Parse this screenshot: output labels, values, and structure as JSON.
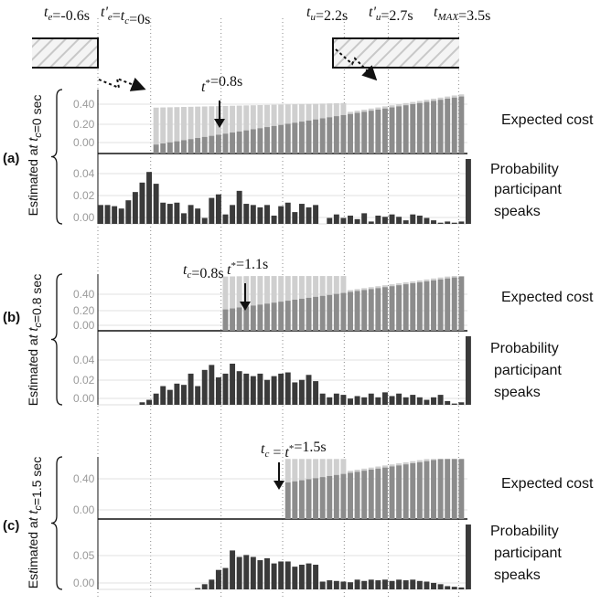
{
  "chart_data": {
    "type": "bar",
    "time_labels": [
      {
        "id": "te",
        "text": "t_e=-0.6s",
        "t": -0.6
      },
      {
        "id": "tc",
        "text": "t'_e=t_c=0s",
        "t": 0
      },
      {
        "id": "tu",
        "text": "t_u=2.2s",
        "t": 2.2
      },
      {
        "id": "tup",
        "text": "t'_u=2.7s",
        "t": 2.7
      },
      {
        "id": "tmax",
        "text": "t_MAX=3.5s",
        "t": 3.5
      }
    ],
    "panels": [
      {
        "label": "(a)",
        "ylabel": "Estimated at t_c=0 sec",
        "tc": 0,
        "tstar_label": "t*=0.8s",
        "tc_label": "",
        "cost_title": "Expected cost",
        "prob_title": "Probability participant speaks",
        "cost_ticks": [
          "0.40",
          "0.20",
          "0.00"
        ],
        "prob_ticks": [
          "0.04",
          "0.02",
          "0.00"
        ],
        "cost_ymax": 0.6,
        "prob_ymax": 0.055,
        "cost_start": 0.0,
        "prob_start": -0.6,
        "prob": [
          0.016,
          0.016,
          0.015,
          0.013,
          0.02,
          0.027,
          0.035,
          0.044,
          0.034,
          0.018,
          0.017,
          0.018,
          0.009,
          0.016,
          0.013,
          0.005,
          0.022,
          0.025,
          0.008,
          0.016,
          0.028,
          0.017,
          0.016,
          0.014,
          0.016,
          0.007,
          0.015,
          0.018,
          0.01,
          0.017,
          0.014,
          0.016,
          0.0,
          0.005,
          0.008,
          0.005,
          0.007,
          0.004,
          0.009,
          0.002,
          0.007,
          0.006,
          0.008,
          0.006,
          0.003,
          0.008,
          0.007,
          0.005,
          0.003,
          0.001,
          0.002,
          0.001,
          0.002,
          0.055
        ]
      },
      {
        "label": "(b)",
        "ylabel": "Estimated at t_c=0.8 sec",
        "tc": 0.8,
        "tstar_label": "t*=1.1s",
        "tc_label": "t_c=0.8s",
        "cost_title": "Expected cost",
        "prob_title": "Probability participant speaks",
        "cost_ticks": [
          "0.40",
          "0.20",
          "0.00"
        ],
        "prob_ticks": [
          "0.04",
          "0.02",
          "0.00"
        ],
        "cost_ymax": 0.6,
        "prob_ymax": 0.055,
        "cost_start": 0.8,
        "prob_start": -0.6,
        "prob": [
          0.0,
          0.0,
          0.0,
          0.0,
          0.0,
          0.0,
          0.002,
          0.004,
          0.009,
          0.015,
          0.012,
          0.017,
          0.016,
          0.025,
          0.015,
          0.028,
          0.032,
          0.022,
          0.025,
          0.033,
          0.027,
          0.025,
          0.023,
          0.025,
          0.02,
          0.023,
          0.025,
          0.026,
          0.018,
          0.02,
          0.024,
          0.019,
          0.009,
          0.006,
          0.009,
          0.008,
          0.005,
          0.007,
          0.006,
          0.009,
          0.006,
          0.01,
          0.007,
          0.009,
          0.006,
          0.008,
          0.006,
          0.004,
          0.006,
          0.008,
          0.003,
          0.001,
          0.002,
          0.055
        ]
      },
      {
        "label": "(c)",
        "ylabel": "Estimated at t_c=1.5 sec",
        "tc": 1.5,
        "tstar_label": "t_c = t*=1.5s",
        "tc_label": "",
        "cost_title": "Expected cost",
        "prob_title": "Probability participant speaks",
        "cost_ticks": [
          "0.40",
          "0.00"
        ],
        "prob_ticks": [
          "0.05",
          "0.00"
        ],
        "cost_ymax": 0.6,
        "prob_ymax": 0.1,
        "cost_start": 1.5,
        "prob_start": -0.6,
        "prob": [
          0.0,
          0.0,
          0.0,
          0.0,
          0.0,
          0.0,
          0.0,
          0.0,
          0.0,
          0.0,
          0.0,
          0.0,
          0.0,
          0.0,
          0.002,
          0.008,
          0.015,
          0.03,
          0.033,
          0.06,
          0.05,
          0.053,
          0.05,
          0.045,
          0.048,
          0.04,
          0.043,
          0.043,
          0.035,
          0.038,
          0.04,
          0.038,
          0.012,
          0.014,
          0.013,
          0.012,
          0.011,
          0.015,
          0.013,
          0.015,
          0.014,
          0.015,
          0.013,
          0.015,
          0.014,
          0.015,
          0.013,
          0.012,
          0.01,
          0.008,
          0.005,
          0.004,
          0.003,
          0.1
        ]
      }
    ]
  }
}
